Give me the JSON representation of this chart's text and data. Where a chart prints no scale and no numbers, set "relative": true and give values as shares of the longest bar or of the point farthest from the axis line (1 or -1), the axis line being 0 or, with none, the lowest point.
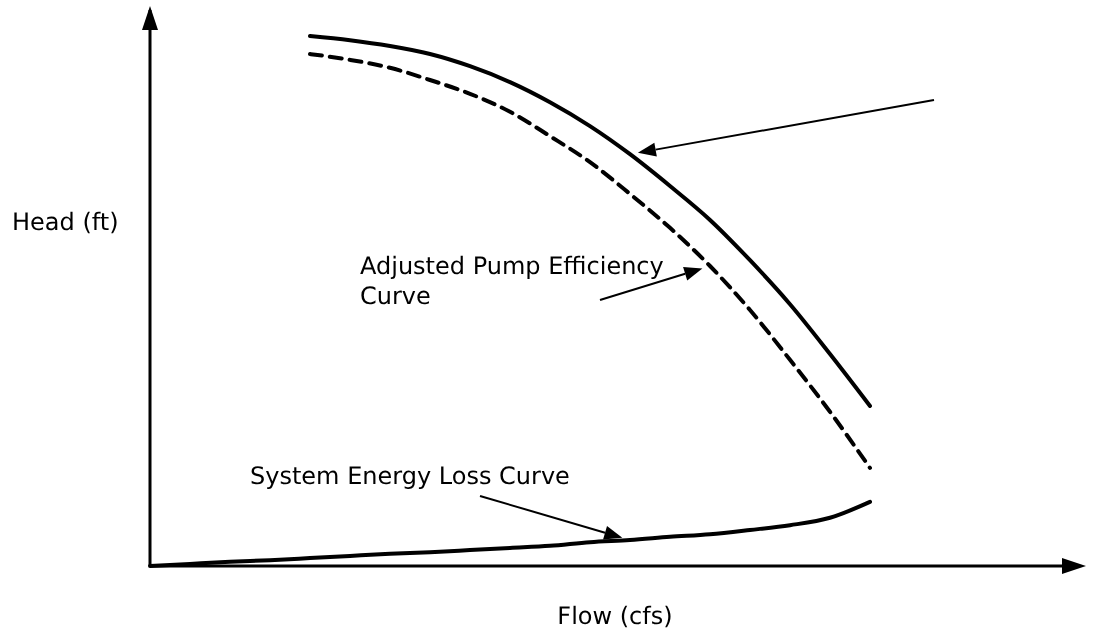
{
  "chart_data": {
    "type": "line",
    "relative": true,
    "xlabel": "Flow (cfs)",
    "ylabel": "Head (ft)",
    "categories": [
      null,
      null,
      null,
      null,
      null,
      null,
      null,
      null,
      null,
      null,
      null,
      null,
      null,
      null,
      null,
      null,
      null,
      null,
      null,
      null,
      null,
      null,
      null,
      null
    ],
    "series": [
      {
        "color": "#000000",
        "line_style": "solid",
        "values": [
          null,
          null,
          null,
          null,
          1.0,
          0.992,
          0.981,
          0.966,
          0.943,
          0.913,
          0.875,
          0.83,
          0.777,
          0.717,
          0.653,
          0.577,
          0.494,
          0.4,
          0.302,
          null,
          null,
          null,
          null,
          null
        ]
      },
      {
        "name": "Adjusted Pump Efficiency Curve",
        "color": "#000000",
        "line_style": "dashed",
        "values": [
          null,
          null,
          null,
          null,
          0.966,
          0.955,
          0.94,
          0.917,
          0.891,
          0.857,
          0.811,
          0.762,
          0.702,
          0.638,
          0.566,
          0.483,
          0.389,
          0.291,
          0.185,
          null,
          null,
          null,
          null,
          null
        ]
      },
      {
        "name": "System Energy Loss Curve",
        "color": "#000000",
        "line_style": "solid",
        "values": [
          0,
          0.004,
          0.008,
          0.011,
          0.015,
          0.019,
          0.023,
          0.026,
          0.03,
          0.034,
          0.038,
          0.045,
          0.049,
          0.055,
          0.06,
          0.068,
          0.077,
          0.091,
          0.121,
          null,
          null,
          null,
          null,
          null
        ]
      }
    ]
  }
}
